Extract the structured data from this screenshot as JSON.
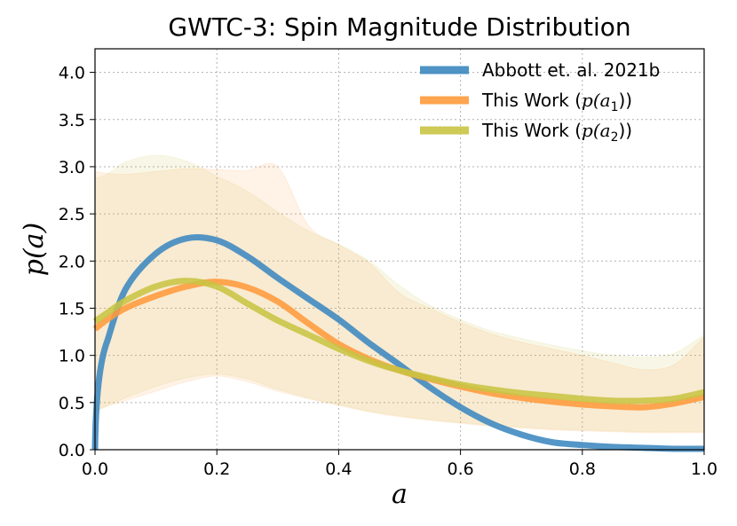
{
  "chart_data": {
    "type": "line",
    "title": "GWTC-3: Spin Magnitude Distribution",
    "xlabel": "a",
    "ylabel": "p(a)",
    "xlim": [
      0.0,
      1.0
    ],
    "ylim": [
      0.0,
      4.25
    ],
    "x_ticks": [
      "0.0",
      "0.2",
      "0.4",
      "0.6",
      "0.8",
      "1.0"
    ],
    "y_ticks": [
      "0.0",
      "0.5",
      "1.0",
      "1.5",
      "2.0",
      "2.5",
      "3.0",
      "3.5",
      "4.0"
    ],
    "grid": true,
    "legend_position": "top-right",
    "x": [
      0.0,
      0.02,
      0.05,
      0.1,
      0.15,
      0.2,
      0.25,
      0.3,
      0.35,
      0.4,
      0.45,
      0.5,
      0.55,
      0.6,
      0.65,
      0.7,
      0.75,
      0.8,
      0.85,
      0.9,
      0.95,
      1.0
    ],
    "series": [
      {
        "name": "Abbott et. al. 2021b",
        "color": "#3c88bf",
        "values": [
          0.0,
          1.15,
          1.7,
          2.08,
          2.24,
          2.22,
          2.05,
          1.82,
          1.6,
          1.38,
          1.13,
          0.9,
          0.66,
          0.45,
          0.28,
          0.16,
          0.08,
          0.05,
          0.03,
          0.02,
          0.01,
          0.01
        ]
      },
      {
        "name": "This Work (p(a_1))",
        "label_prefix": "This Work (",
        "label_var": "p",
        "label_sub": "1",
        "label_suffix": "))",
        "color": "#ff9a3c",
        "values": [
          1.28,
          1.38,
          1.5,
          1.63,
          1.73,
          1.78,
          1.72,
          1.57,
          1.34,
          1.12,
          0.96,
          0.84,
          0.75,
          0.67,
          0.6,
          0.55,
          0.51,
          0.48,
          0.46,
          0.45,
          0.49,
          0.56
        ],
        "band_upper": [
          2.95,
          2.93,
          2.92,
          2.95,
          2.98,
          2.97,
          2.96,
          3.0,
          2.38,
          2.17,
          1.98,
          1.66,
          1.5,
          1.35,
          1.23,
          1.14,
          1.07,
          1.0,
          0.92,
          0.85,
          0.9,
          1.2
        ],
        "band_lower": [
          0.4,
          0.46,
          0.52,
          0.62,
          0.72,
          0.78,
          0.72,
          0.62,
          0.54,
          0.47,
          0.4,
          0.35,
          0.31,
          0.28,
          0.25,
          0.23,
          0.21,
          0.2,
          0.19,
          0.18,
          0.18,
          0.18
        ]
      },
      {
        "name": "This Work (p(a_2))",
        "label_prefix": "This Work (",
        "label_var": "p",
        "label_sub": "2",
        "label_suffix": "))",
        "color": "#c8c443",
        "values": [
          1.36,
          1.45,
          1.58,
          1.73,
          1.79,
          1.73,
          1.55,
          1.37,
          1.22,
          1.07,
          0.94,
          0.84,
          0.76,
          0.69,
          0.64,
          0.6,
          0.57,
          0.54,
          0.52,
          0.52,
          0.54,
          0.61
        ],
        "band_upper": [
          2.88,
          2.92,
          3.05,
          3.12,
          3.06,
          2.9,
          2.74,
          2.52,
          2.32,
          2.18,
          2.0,
          1.74,
          1.53,
          1.38,
          1.26,
          1.18,
          1.11,
          1.05,
          1.0,
          0.98,
          1.02,
          1.22
        ],
        "band_lower": [
          0.41,
          0.47,
          0.55,
          0.67,
          0.76,
          0.8,
          0.75,
          0.64,
          0.55,
          0.48,
          0.41,
          0.36,
          0.32,
          0.29,
          0.26,
          0.24,
          0.22,
          0.21,
          0.2,
          0.19,
          0.19,
          0.19
        ]
      }
    ]
  }
}
